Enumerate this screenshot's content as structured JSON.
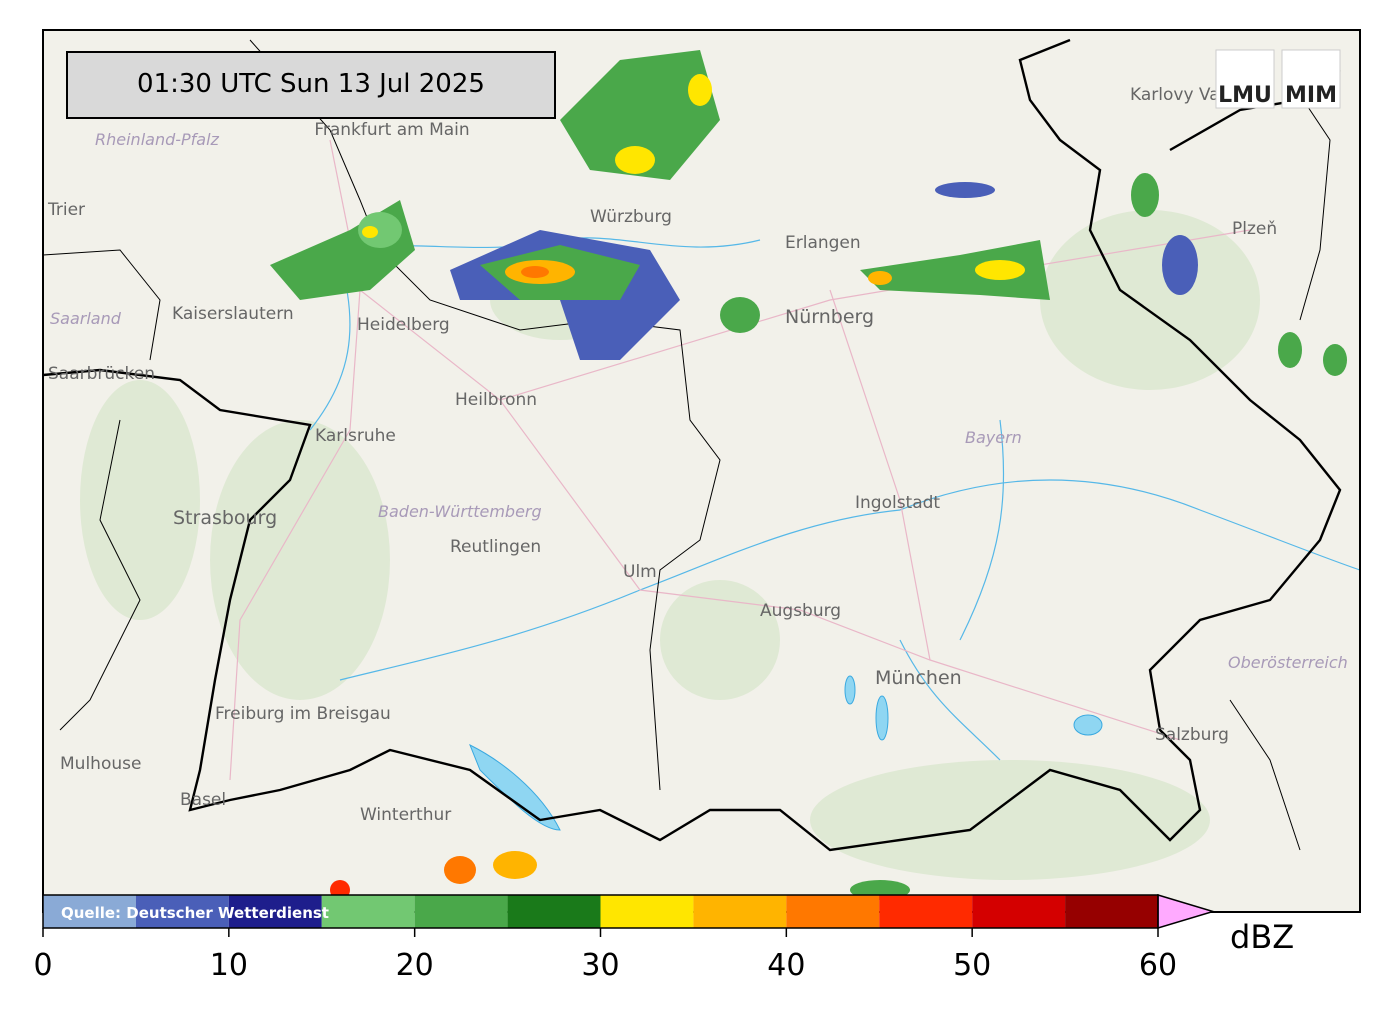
{
  "header": {
    "timestamp": "01:30 UTC  Sun 13 Jul 2025",
    "logos": [
      "LMU",
      "MIM"
    ]
  },
  "map": {
    "labels": [
      "Frankfurt am Main",
      "Rheinland-Pfalz",
      "Trier",
      "Kaiserslautern",
      "Saarland",
      "Heidelberg",
      "Heilbronn",
      "Karlsruhe",
      "Strasbourg",
      "Baden-Württemberg",
      "Reutlingen",
      "Ulm",
      "Augsburg",
      "Ingolstadt",
      "Bayern",
      "Nürnberg",
      "Erlangen",
      "Würzburg",
      "Karlovy Vary",
      "Plzeň",
      "München",
      "Oberösterreich",
      "Salzburg",
      "Freiburg im Breisgau",
      "Mulhouse",
      "Basel",
      "Winterthur",
      "Saarbrücken"
    ]
  },
  "colorbar": {
    "bounds": [
      0,
      5,
      10,
      15,
      20,
      25,
      30,
      35,
      40,
      45,
      50,
      55,
      60
    ],
    "colors": [
      "#8aaad6",
      "#4a5fb8",
      "#1e1e8c",
      "#72c872",
      "#4aa84a",
      "#1a7a1a",
      "#ffe600",
      "#ffb400",
      "#ff7800",
      "#ff2a00",
      "#d40000",
      "#960000"
    ],
    "extend_color": "#ffaaff",
    "ticks": [
      0,
      10,
      20,
      30,
      40,
      50,
      60
    ],
    "unit": "dBZ",
    "source": "Quelle: Deutscher Wetterdienst"
  }
}
